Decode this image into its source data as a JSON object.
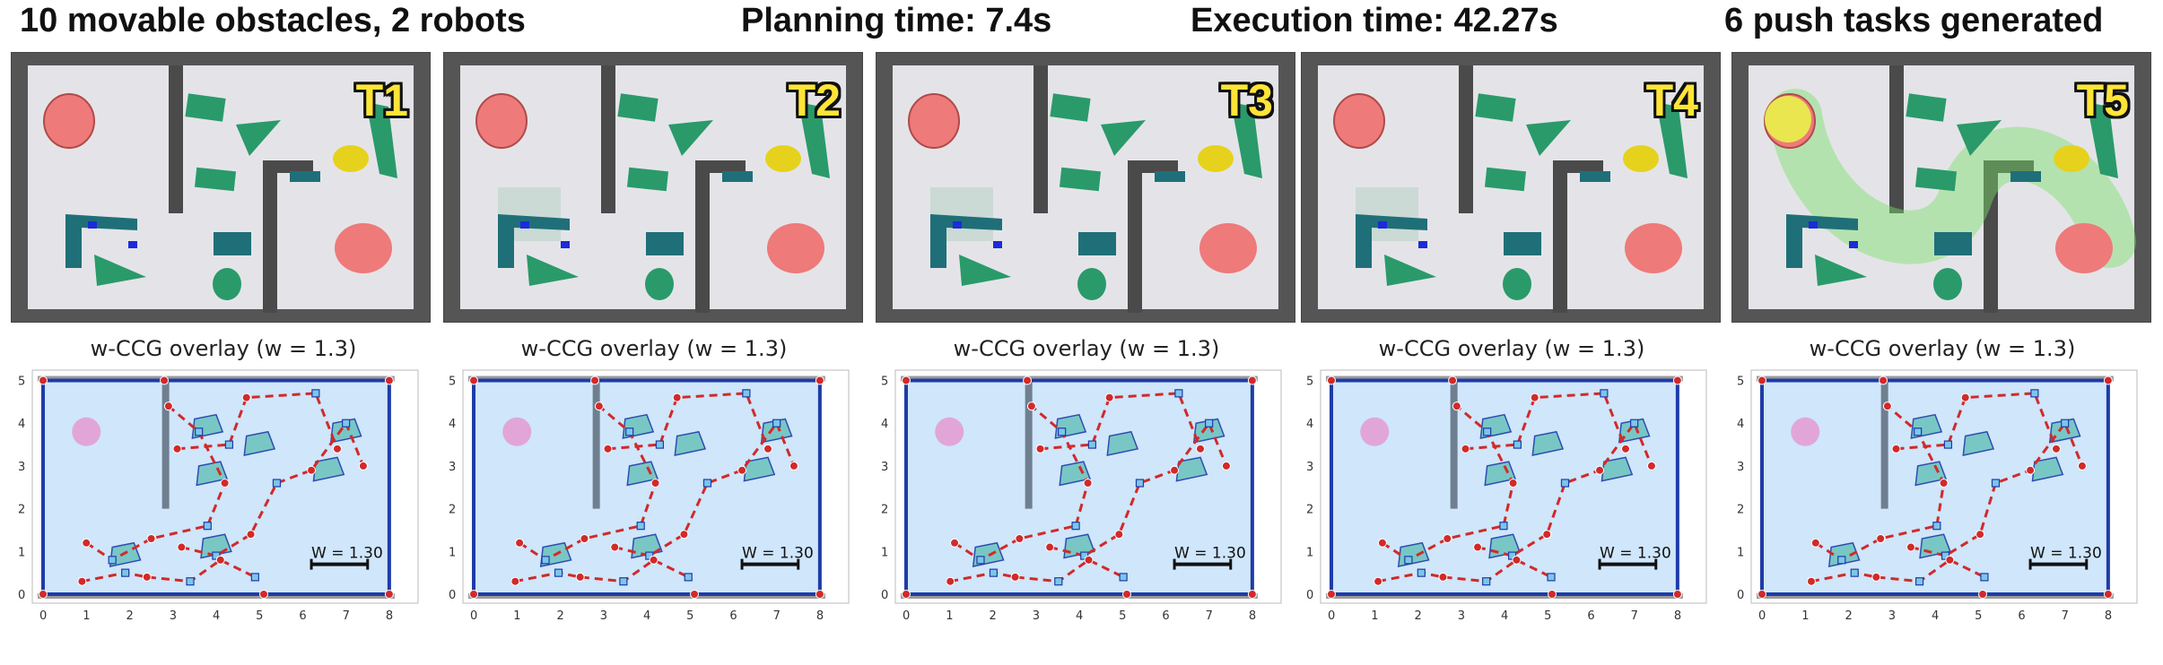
{
  "header": {
    "obstacles": "10 movable obstacles, 2 robots",
    "planning": "Planning time: 7.4s",
    "execution": "Execution time: 42.27s",
    "tasks": "6 push tasks generated"
  },
  "panels": [
    {
      "label": "T1",
      "plot_title": "w-CCG overlay (w = 1.3)",
      "scale_label": "W = 1.30"
    },
    {
      "label": "T2",
      "plot_title": "w-CCG overlay (w = 1.3)",
      "scale_label": "W = 1.30"
    },
    {
      "label": "T3",
      "plot_title": "w-CCG overlay (w = 1.3)",
      "scale_label": "W = 1.30"
    },
    {
      "label": "T4",
      "plot_title": "w-CCG overlay (w = 1.3)",
      "scale_label": "W = 1.30"
    },
    {
      "label": "T5",
      "plot_title": "w-CCG overlay (w = 1.3)",
      "scale_label": "W = 1.30"
    }
  ],
  "axes": {
    "x_ticks": [
      "0",
      "1",
      "2",
      "3",
      "4",
      "5",
      "6",
      "7",
      "8"
    ],
    "y_ticks": [
      "0",
      "1",
      "2",
      "3",
      "4",
      "5"
    ]
  },
  "colors": {
    "wall": "#555555",
    "floor": "#e4e4e8",
    "obstacle_green": "#2a9a6a",
    "obstacle_teal": "#1f6f78",
    "goal_red": "#ee7a7a",
    "yellow_object": "#e6d21c",
    "free_space": "#cfe6fb",
    "graph_edge": "#d12a2a",
    "region_boundary": "#1e3ca8"
  }
}
